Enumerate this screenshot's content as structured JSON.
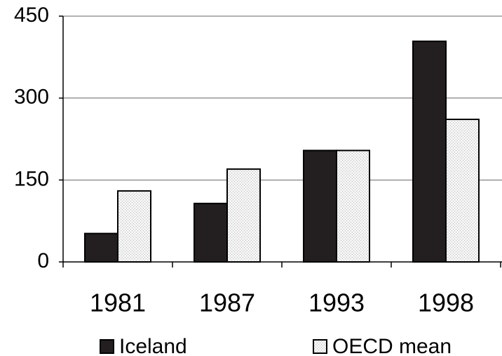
{
  "chart_data": {
    "type": "bar",
    "categories": [
      "1981",
      "1987",
      "1993",
      "1998"
    ],
    "series": [
      {
        "name": "Iceland",
        "color": "#231f20",
        "values": [
          52,
          107,
          204,
          404
        ]
      },
      {
        "name": "OECD mean",
        "color": "#ececec",
        "values": [
          130,
          170,
          204,
          261
        ]
      }
    ],
    "ylim": [
      0,
      450
    ],
    "yticks": [
      0,
      150,
      300,
      450
    ],
    "grid": true,
    "legend": "bottom"
  }
}
